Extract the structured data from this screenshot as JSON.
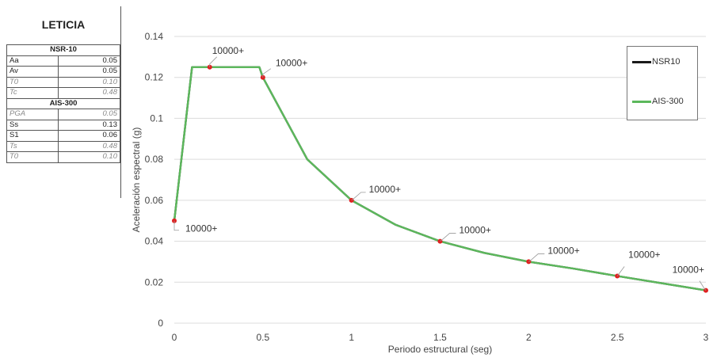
{
  "panel": {
    "title": "LETICIA",
    "rows": [
      {
        "kind": "section",
        "label": "NSR-10"
      },
      {
        "kind": "input",
        "label": "Aa",
        "value": "0.05"
      },
      {
        "kind": "input",
        "label": "Av",
        "value": "0.05"
      },
      {
        "kind": "computed",
        "label": "T0",
        "value": "0.10"
      },
      {
        "kind": "computed",
        "label": "Tc",
        "value": "0.48"
      },
      {
        "kind": "section",
        "label": "AIS-300"
      },
      {
        "kind": "computed",
        "label": "PGA",
        "value": "0.05"
      },
      {
        "kind": "input",
        "label": "Ss",
        "value": "0.13"
      },
      {
        "kind": "input",
        "label": "S1",
        "value": "0.06"
      },
      {
        "kind": "computed",
        "label": "Ts",
        "value": "0.48"
      },
      {
        "kind": "computed",
        "label": "T0",
        "value": "0.10"
      }
    ]
  },
  "chart_data": {
    "type": "line",
    "title": "",
    "xlabel": "Periodo estructural (seg)",
    "ylabel": "Aceleración espectral (g)",
    "xlim": [
      0,
      3
    ],
    "ylim": [
      0,
      0.14
    ],
    "x_ticks": [
      "0",
      "0.5",
      "1",
      "1.5",
      "2",
      "2.5",
      "3"
    ],
    "y_ticks": [
      "0",
      "0.02",
      "0.04",
      "0.06",
      "0.08",
      "0.1",
      "0.12",
      "0.14"
    ],
    "grid": "horizontal",
    "legend": "top-right",
    "series": [
      {
        "name": "NSR10",
        "color": "#1a1a1a",
        "x": [
          0,
          0.1,
          0.2,
          0.3,
          0.4,
          0.48,
          0.5,
          0.75,
          1.0,
          1.25,
          1.5,
          1.75,
          2.0,
          2.25,
          2.5,
          2.75,
          3.0
        ],
        "y": [
          0.05,
          0.125,
          0.125,
          0.125,
          0.125,
          0.125,
          0.12,
          0.08,
          0.06,
          0.048,
          0.04,
          0.0343,
          0.03,
          0.0267,
          0.023,
          0.0195,
          0.016
        ]
      },
      {
        "name": "AIS-300",
        "color": "#5cb85c",
        "x": [
          0,
          0.1,
          0.2,
          0.3,
          0.4,
          0.48,
          0.5,
          0.75,
          1.0,
          1.25,
          1.5,
          1.75,
          2.0,
          2.25,
          2.5,
          2.75,
          3.0
        ],
        "y": [
          0.05,
          0.125,
          0.125,
          0.125,
          0.125,
          0.125,
          0.12,
          0.08,
          0.06,
          0.048,
          0.04,
          0.0343,
          0.03,
          0.0267,
          0.023,
          0.0195,
          0.016
        ]
      }
    ],
    "markers": {
      "color": "#e02020",
      "points": [
        {
          "x": 0,
          "y": 0.05,
          "label": "10000+"
        },
        {
          "x": 0.2,
          "y": 0.125,
          "label": "10000+"
        },
        {
          "x": 0.5,
          "y": 0.12,
          "label": "10000+"
        },
        {
          "x": 1.0,
          "y": 0.06,
          "label": "10000+"
        },
        {
          "x": 1.5,
          "y": 0.04,
          "label": "10000+"
        },
        {
          "x": 2.0,
          "y": 0.03,
          "label": "10000+"
        },
        {
          "x": 2.5,
          "y": 0.023,
          "label": "10000+"
        },
        {
          "x": 3.0,
          "y": 0.016,
          "label": "10000+"
        }
      ]
    }
  }
}
